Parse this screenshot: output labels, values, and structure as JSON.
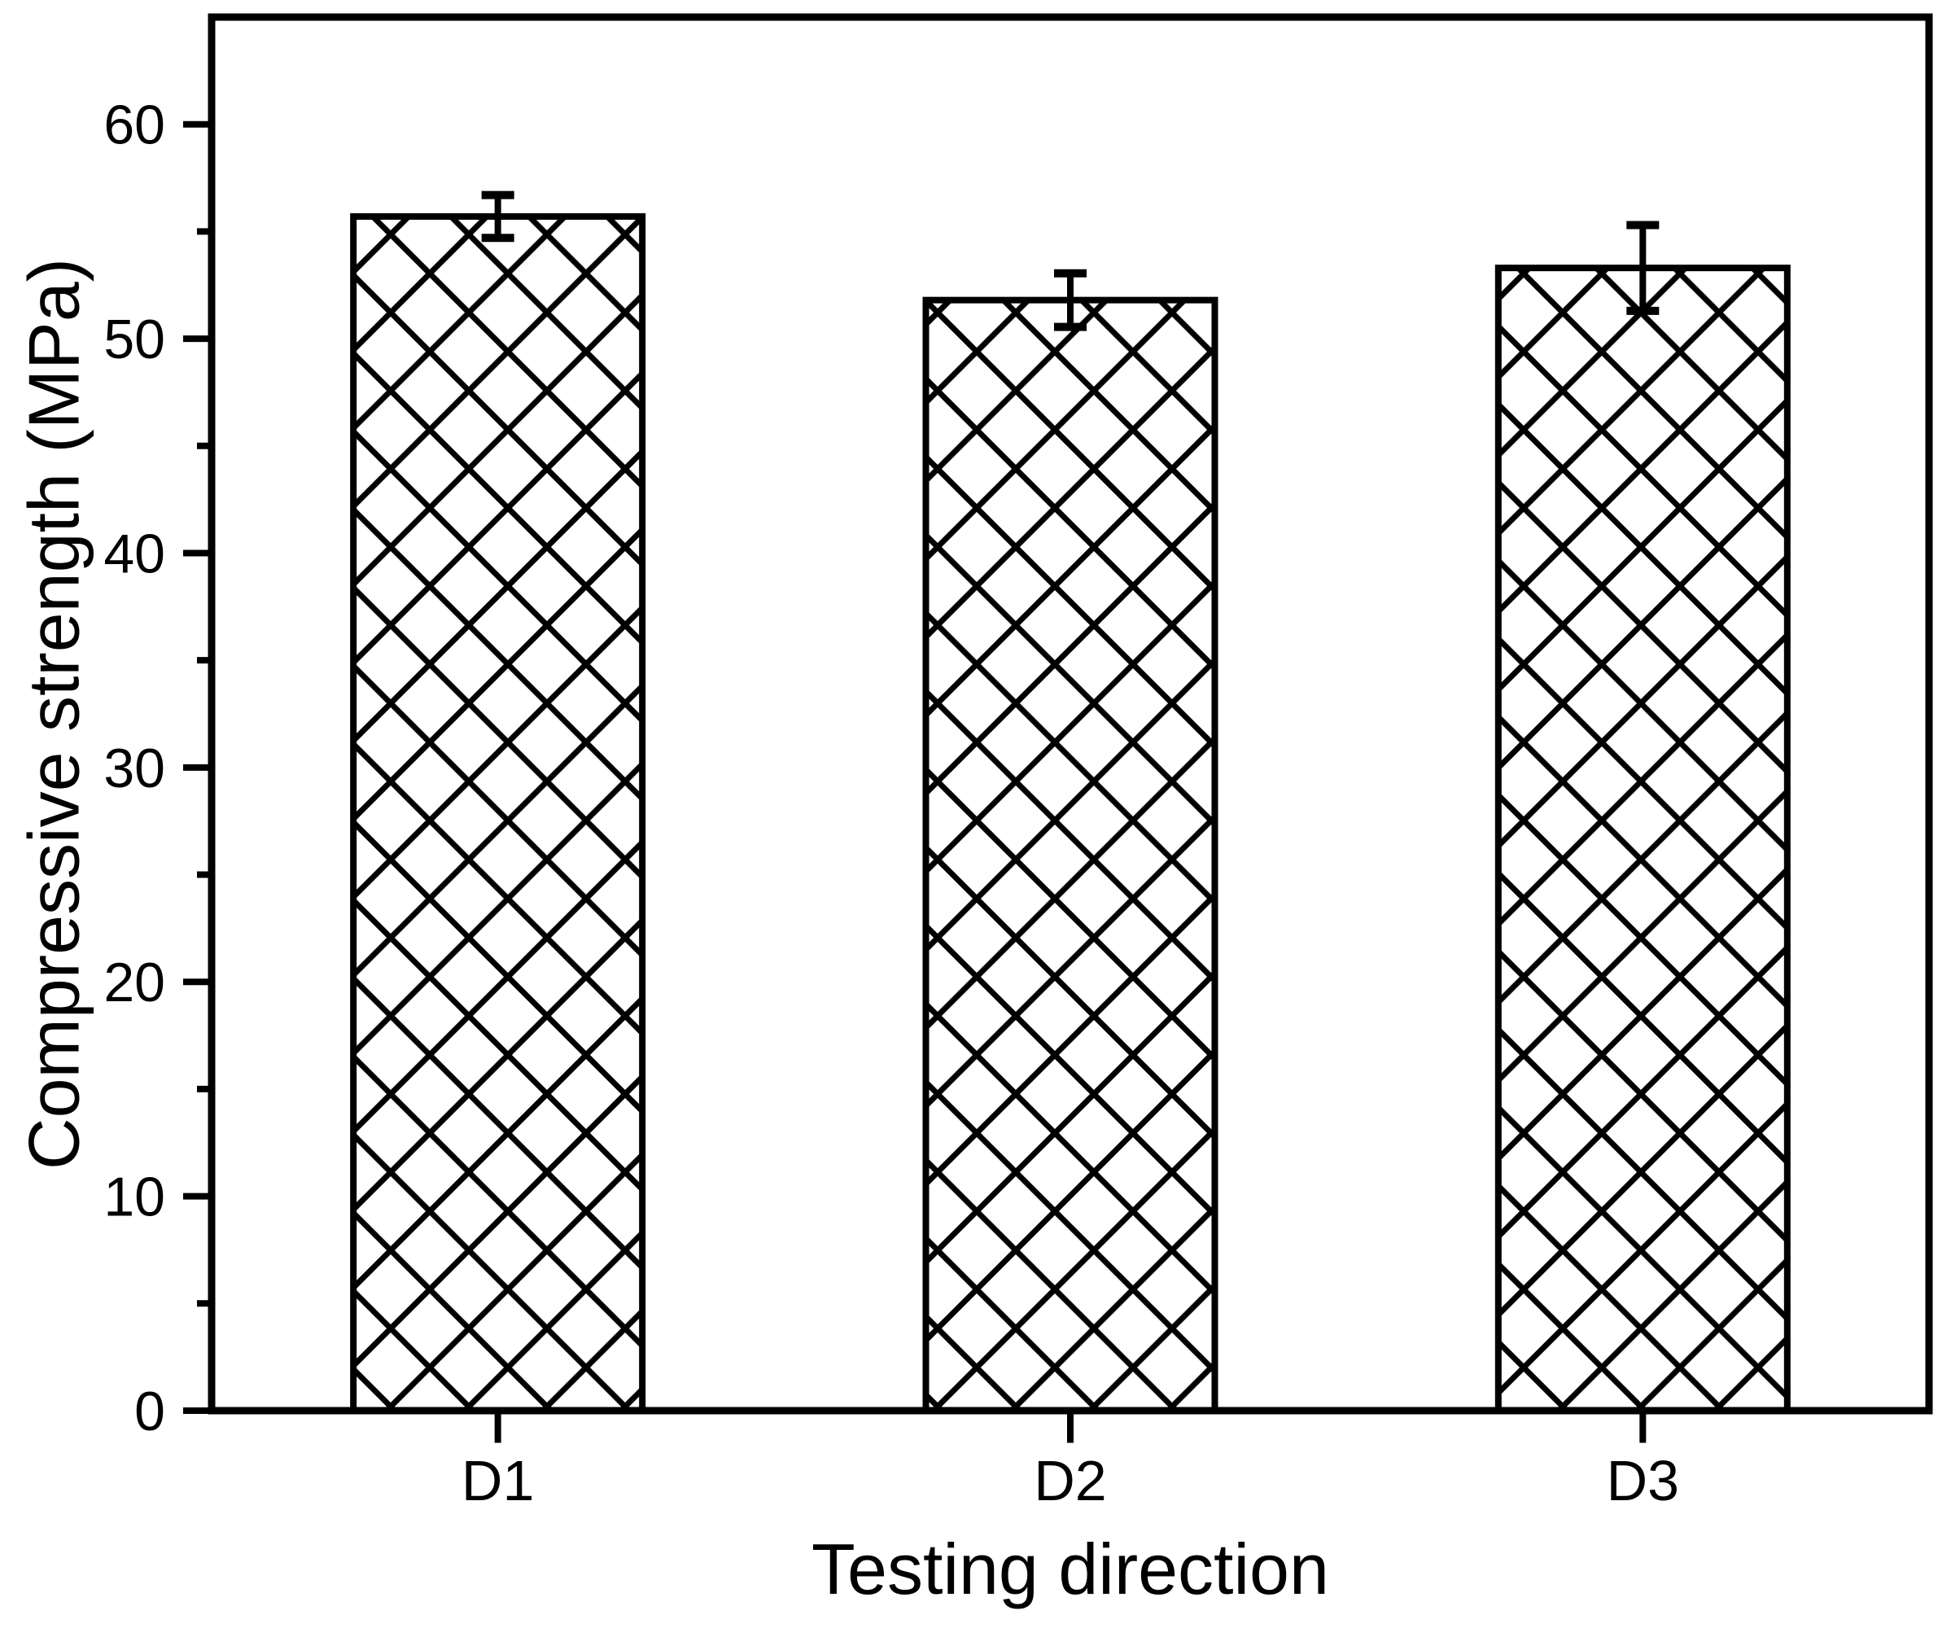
{
  "chart_data": {
    "type": "bar",
    "xlabel": "Testing direction",
    "ylabel": "Compressive strength (MPa)",
    "categories": [
      "D1",
      "D2",
      "D3"
    ],
    "values": [
      55.7,
      51.8,
      53.3
    ],
    "errors": [
      1.0,
      1.25,
      2.0
    ],
    "ylim": [
      0,
      65
    ],
    "y_major_ticks": [
      0,
      10,
      20,
      30,
      40,
      50,
      60
    ],
    "y_tick_labels": [
      "0",
      "10",
      "20",
      "30",
      "40",
      "50",
      "60"
    ],
    "y_minor_ticks": [
      5,
      15,
      25,
      35,
      45,
      55
    ],
    "grid": false,
    "legend": "none",
    "bar_fill_pattern": "diagonal-crosshatch",
    "colors": {
      "stroke": "#000000",
      "bar_fill_background": "#ffffff",
      "background": "#ffffff"
    }
  }
}
